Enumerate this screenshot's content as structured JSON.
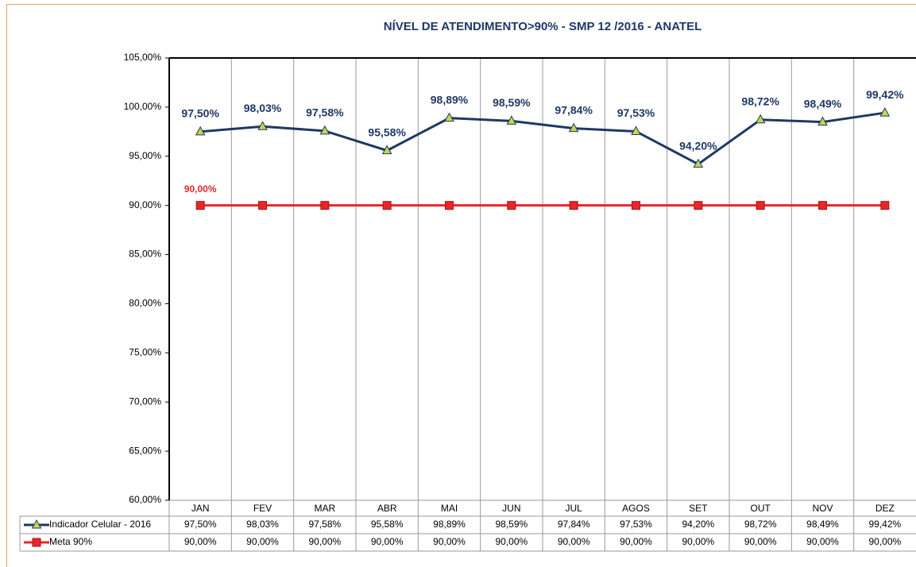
{
  "chart_data": {
    "type": "line",
    "title": "NÍVEL DE ATENDIMENTO>90% - SMP 12 /2016 - ANATEL",
    "categories": [
      "JAN",
      "FEV",
      "MAR",
      "ABR",
      "MAI",
      "JUN",
      "JUL",
      "AGOS",
      "SET",
      "OUT",
      "NOV",
      "DEZ"
    ],
    "series": [
      {
        "name": "Indicador Celular - 2016",
        "color": "#1f3864",
        "marker_color": "#c4d64a",
        "values": [
          97.5,
          98.03,
          97.58,
          95.58,
          98.89,
          98.59,
          97.84,
          97.53,
          94.2,
          98.72,
          98.49,
          99.42
        ],
        "value_labels": [
          "97,50%",
          "98,03%",
          "97,58%",
          "95,58%",
          "98,89%",
          "98,59%",
          "97,84%",
          "97,53%",
          "94,20%",
          "98,72%",
          "98,49%",
          "99,42%"
        ]
      },
      {
        "name": "Meta 90%",
        "color": "#e8262a",
        "marker_color": "#e8262a",
        "values": [
          90,
          90,
          90,
          90,
          90,
          90,
          90,
          90,
          90,
          90,
          90,
          90
        ],
        "value_labels": [
          "90,00%",
          "90,00%",
          "90,00%",
          "90,00%",
          "90,00%",
          "90,00%",
          "90,00%",
          "90,00%",
          "90,00%",
          "90,00%",
          "90,00%",
          "90,00%"
        ]
      }
    ],
    "ylim": [
      60,
      105
    ],
    "yticks": [
      {
        "value": 60,
        "label": "60,00%"
      },
      {
        "value": 65,
        "label": "65,00%"
      },
      {
        "value": 70,
        "label": "70,00%"
      },
      {
        "value": 75,
        "label": "75,00%"
      },
      {
        "value": 80,
        "label": "80,00%"
      },
      {
        "value": 85,
        "label": "85,00%"
      },
      {
        "value": 90,
        "label": "90,00%"
      },
      {
        "value": 95,
        "label": "95,00%"
      },
      {
        "value": 100,
        "label": "100,00%"
      },
      {
        "value": 105,
        "label": "105,00%"
      }
    ],
    "grid": true
  }
}
